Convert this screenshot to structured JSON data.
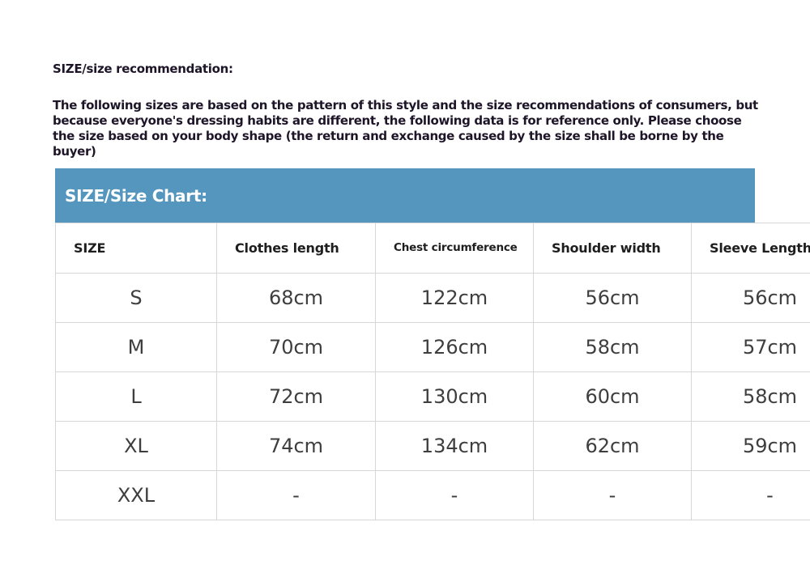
{
  "title": "SIZE/size recommendation:",
  "intro": "The following sizes are based on the pattern of this style and the size recommendations of consumers, but because everyone's dressing habits are different, the following data is for reference only. Please choose the size based on your body shape (the return and exchange caused by the size shall be borne by the buyer)",
  "table": {
    "banner": "SIZE/Size Chart:",
    "banner_color": "#5496bd",
    "headers": [
      "SIZE",
      "Clothes length",
      "Chest circumference",
      "Shoulder width",
      "Sleeve Length"
    ],
    "rows": [
      [
        "S",
        "68cm",
        "122cm",
        "56cm",
        "56cm"
      ],
      [
        "M",
        "70cm",
        "126cm",
        "58cm",
        "57cm"
      ],
      [
        "L",
        "72cm",
        "130cm",
        "60cm",
        "58cm"
      ],
      [
        "XL",
        "74cm",
        "134cm",
        "62cm",
        "59cm"
      ],
      [
        "XXL",
        "-",
        "-",
        "-",
        "-"
      ]
    ]
  }
}
